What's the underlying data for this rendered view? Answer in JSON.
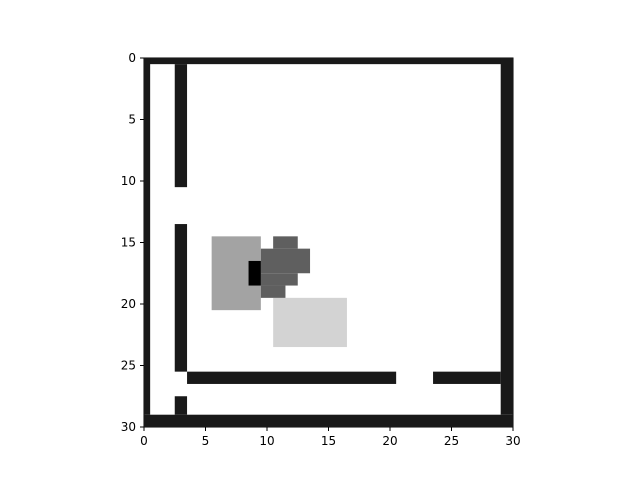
{
  "image": {
    "grid_size": [
      30,
      30
    ],
    "axes": {
      "x_ticks": [
        0,
        5,
        10,
        15,
        20,
        25,
        30
      ],
      "y_ticks": [
        0,
        5,
        10,
        15,
        20,
        25,
        30
      ],
      "x_range": [
        0,
        30
      ],
      "y_range_top_to_bottom": [
        0,
        30
      ]
    },
    "colors": {
      "wall": "#191919",
      "agent_body": "#a3a3a3",
      "agent_marker": "#000000",
      "object": "#5f5f5f",
      "zone": "#d3d3d3",
      "floor": "#ffffff"
    },
    "walls": [
      {
        "x": 0,
        "y": 0,
        "w": 30,
        "h": 0.5
      },
      {
        "x": 0,
        "y": 0,
        "w": 0.5,
        "h": 29
      },
      {
        "x": 29,
        "y": 0,
        "w": 1,
        "h": 29
      },
      {
        "x": 0,
        "y": 29,
        "w": 30,
        "h": 1
      },
      {
        "x": 2.5,
        "y": 0.5,
        "w": 1,
        "h": 10
      },
      {
        "x": 2.5,
        "y": 13.5,
        "w": 1,
        "h": 12
      },
      {
        "x": 2.5,
        "y": 27.5,
        "w": 1,
        "h": 1.5
      },
      {
        "x": 3.5,
        "y": 25.5,
        "w": 17,
        "h": 1
      },
      {
        "x": 23.5,
        "y": 25.5,
        "w": 5.5,
        "h": 1
      }
    ],
    "entities": {
      "agent": {
        "x": 5.5,
        "y": 14.5,
        "w": 4,
        "h": 6
      },
      "agent_marker": {
        "x": 8.5,
        "y": 16.5,
        "w": 1,
        "h": 2
      },
      "object_cells": [
        {
          "x": 10.5,
          "y": 14.5,
          "w": 2,
          "h": 1
        },
        {
          "x": 9.5,
          "y": 15.5,
          "w": 4,
          "h": 2
        },
        {
          "x": 9.5,
          "y": 17.5,
          "w": 3,
          "h": 1
        },
        {
          "x": 9.5,
          "y": 18.5,
          "w": 2,
          "h": 1
        }
      ],
      "zone": {
        "x": 10.5,
        "y": 19.5,
        "w": 6,
        "h": 4
      }
    }
  }
}
